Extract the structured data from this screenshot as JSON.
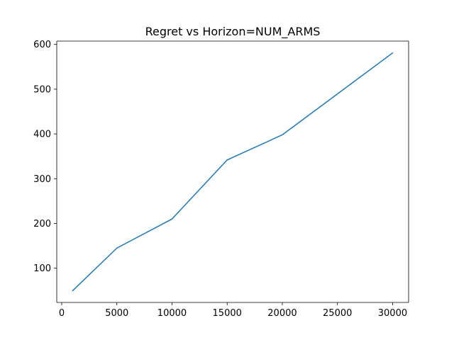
{
  "chart_data": {
    "type": "line",
    "title": "Regret vs Horizon=NUM_ARMS",
    "xlabel": "",
    "ylabel": "",
    "x": [
      1000,
      5000,
      10000,
      15000,
      20000,
      30000
    ],
    "series": [
      {
        "values": [
          50,
          145,
          210,
          342,
          398,
          581
        ],
        "color": "#1f77b4"
      }
    ],
    "xlim": [
      -450,
      31450
    ],
    "ylim": [
      23.5,
      607.5
    ],
    "xticks": [
      0,
      5000,
      10000,
      15000,
      20000,
      25000,
      30000
    ],
    "yticks": [
      100,
      200,
      300,
      400,
      500,
      600
    ],
    "grid": false,
    "legend": "none"
  }
}
